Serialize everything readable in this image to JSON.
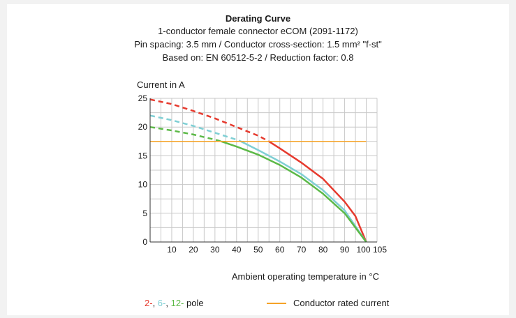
{
  "header": {
    "title": "Derating Curve",
    "line1": "1-conductor female connector eCOM (2091-1172)",
    "line2": "Pin spacing: 3.5 mm / Conductor cross-section: 1.5 mm² \"f-st\"",
    "line3": "Based on: EN 60512-5-2 / Reduction factor: 0.8"
  },
  "colors": {
    "red": "#e63a2e",
    "cyan": "#7fcfd4",
    "green": "#5cb947",
    "orange": "#f5a327",
    "grid": "#c8c8c8",
    "axis": "#333333"
  },
  "chart_data": {
    "type": "line",
    "ylabel": "Current in A",
    "xlabel": "Ambient operating temperature in °C",
    "xlim": [
      0,
      105
    ],
    "ylim": [
      0,
      25
    ],
    "xticks": [
      10,
      20,
      30,
      40,
      50,
      60,
      70,
      80,
      90,
      100,
      105
    ],
    "yticks": [
      0,
      5,
      10,
      15,
      20,
      25
    ],
    "grid": true,
    "series": [
      {
        "name": "2-",
        "color": "#e63a2e",
        "dashed": {
          "x": [
            0,
            10,
            20,
            30,
            40,
            50,
            55
          ],
          "y": [
            24.8,
            24.0,
            22.8,
            21.5,
            20.0,
            18.5,
            17.5
          ]
        },
        "solid": {
          "x": [
            55,
            60,
            70,
            80,
            90,
            95,
            100
          ],
          "y": [
            17.5,
            16.3,
            13.8,
            11.0,
            7.0,
            4.5,
            0
          ]
        }
      },
      {
        "name": "6-",
        "color": "#7fcfd4",
        "dashed": {
          "x": [
            0,
            10,
            20,
            30,
            40,
            42
          ],
          "y": [
            22.0,
            21.2,
            20.2,
            19.0,
            17.8,
            17.5
          ]
        },
        "solid": {
          "x": [
            42,
            50,
            60,
            70,
            80,
            90,
            100
          ],
          "y": [
            17.5,
            16.0,
            14.0,
            11.8,
            9.0,
            5.5,
            0
          ]
        }
      },
      {
        "name": "12-",
        "color": "#5cb947",
        "dashed": {
          "x": [
            0,
            10,
            20,
            30,
            33
          ],
          "y": [
            20.0,
            19.4,
            18.7,
            17.8,
            17.5
          ]
        },
        "solid": {
          "x": [
            33,
            40,
            50,
            60,
            70,
            80,
            90,
            100
          ],
          "y": [
            17.5,
            16.6,
            15.2,
            13.4,
            11.2,
            8.4,
            5.0,
            0
          ]
        }
      },
      {
        "name": "Conductor rated current",
        "color": "#f5a327",
        "solid": {
          "x": [
            0,
            100
          ],
          "y": [
            17.5,
            17.5
          ]
        }
      }
    ]
  },
  "legend": {
    "pole_2": "2-",
    "sep1": ", ",
    "pole_6": "6-",
    "sep2": ", ",
    "pole_12": "12-",
    "pole_suffix": " pole",
    "conductor": "Conductor rated current"
  }
}
